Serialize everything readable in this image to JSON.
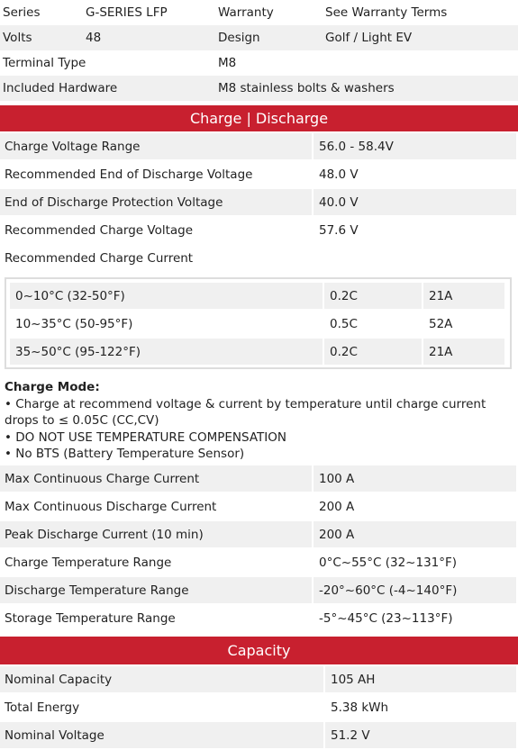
{
  "spec_top": {
    "rows": [
      [
        "Series",
        "G-SERIES LFP",
        "Warranty",
        "See Warranty Terms"
      ],
      [
        "Volts",
        "48",
        "Design",
        "Golf / Light EV"
      ]
    ],
    "wide_rows": [
      [
        "Terminal Type",
        "M8"
      ],
      [
        "Included Hardware",
        "M8 stainless bolts & washers"
      ]
    ]
  },
  "charge_discharge": {
    "title": "Charge | Discharge",
    "rows": [
      [
        "Charge Voltage Range",
        "56.0 - 58.4V"
      ],
      [
        "Recommended End of Discharge Voltage",
        "48.0 V"
      ],
      [
        "End of Discharge Protection Voltage",
        "40.0 V"
      ],
      [
        "Recommended Charge Voltage",
        "57.6 V"
      ]
    ],
    "current_label": "Recommended Charge Current",
    "current_table": [
      [
        "0~10°C (32-50°F)",
        "0.2C",
        "21A"
      ],
      [
        "10~35°C (50-95°F)",
        "0.5C",
        "52A"
      ],
      [
        "35~50°C (95-122°F)",
        "0.2C",
        "21A"
      ]
    ],
    "charge_mode": {
      "title": "Charge Mode:",
      "lines": [
        "• Charge at recommend voltage & current by temperature until charge current drops to ≤ 0.05C (CC,CV)",
        "• DO NOT USE TEMPERATURE COMPENSATION",
        "• No BTS (Battery Temperature Sensor)"
      ]
    },
    "rows2": [
      [
        "Max Continuous Charge Current",
        "100 A"
      ],
      [
        "Max Continuous Discharge Current",
        "200 A"
      ],
      [
        "Peak Discharge Current (10 min)",
        "200 A"
      ],
      [
        "Charge Temperature Range",
        "0°C~55°C (32~131°F)"
      ],
      [
        "Discharge Temperature Range",
        "-20°~60°C (-4~140°F)"
      ],
      [
        "Storage Temperature Range",
        "-5°~45°C (23~113°F)"
      ]
    ]
  },
  "capacity": {
    "title": "Capacity",
    "rows": [
      [
        "Nominal Capacity",
        "105 AH"
      ],
      [
        "Total Energy",
        "5.38 kWh"
      ],
      [
        "Nominal Voltage",
        "51.2 V"
      ]
    ]
  }
}
